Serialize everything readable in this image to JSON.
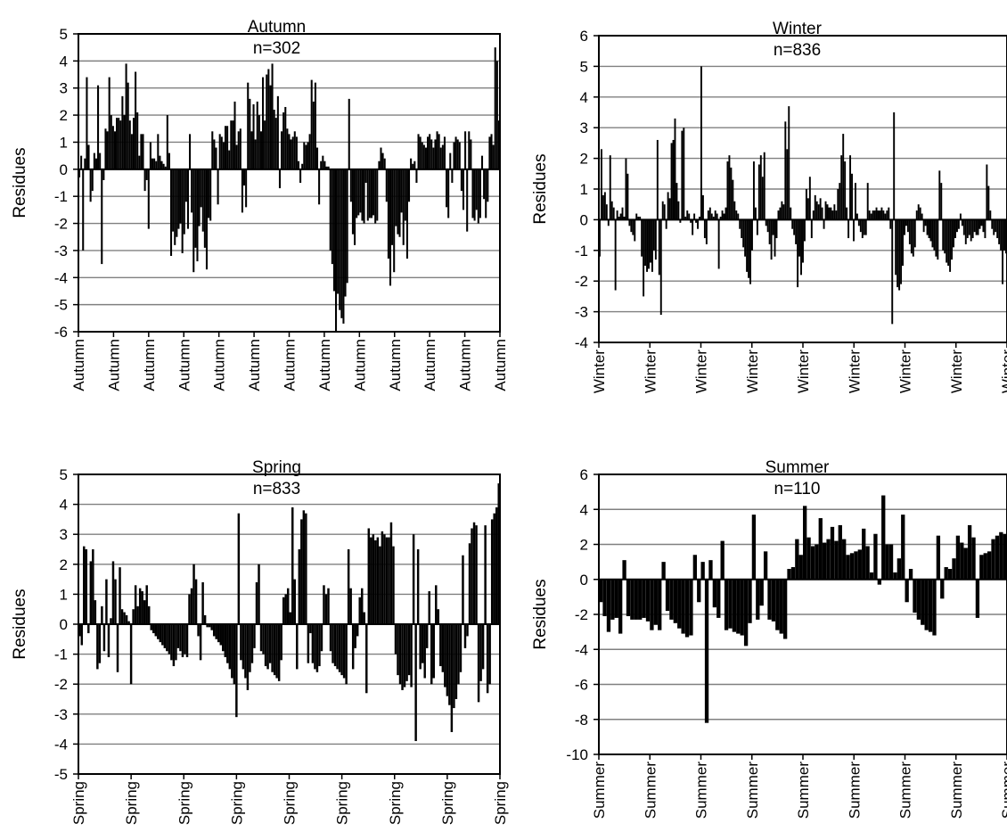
{
  "figure": {
    "panels": [
      {
        "title": "Autumn",
        "n_label": "n=302"
      },
      {
        "title": "Winter",
        "n_label": "n=836"
      },
      {
        "title": "Spring",
        "n_label": "n=833"
      },
      {
        "title": "Summer",
        "n_label": "n=110"
      }
    ]
  },
  "chart_data": [
    {
      "type": "bar",
      "title": "Autumn",
      "annotation": "n=302",
      "ylabel": "Residues",
      "xlabel": "",
      "ylim": [
        -6,
        5
      ],
      "yticks": [
        -6,
        -5,
        -4,
        -3,
        -2,
        -1,
        0,
        1,
        2,
        3,
        4,
        5
      ],
      "xtick_labels": [
        "Autumn",
        "Autumn",
        "Autumn",
        "Autumn",
        "Autumn",
        "Autumn",
        "Autumn",
        "Autumn",
        "Autumn",
        "Autumn",
        "Autumn",
        "Autumn",
        "Autumn"
      ],
      "grid": true,
      "n": 302,
      "values": [
        -0.3,
        0.5,
        -3.0,
        0.4,
        3.4,
        0.9,
        -1.2,
        -0.8,
        0.6,
        0.4,
        3.1,
        0.6,
        -3.5,
        -0.4,
        1.5,
        1.4,
        3.4,
        2.0,
        1.6,
        1.4,
        1.9,
        1.9,
        1.8,
        2.7,
        2.0,
        3.9,
        3.2,
        1.8,
        1.3,
        1.9,
        3.6,
        2.1,
        0.5,
        1.3,
        1.3,
        -0.8,
        -0.4,
        -2.2,
        1.0,
        0.4,
        0.4,
        0.3,
        1.3,
        0.5,
        0.3,
        0.2,
        0.1,
        2.0,
        0.6,
        -3.2,
        -2.3,
        -2.8,
        -2.5,
        -2.2,
        -2.0,
        -3.1,
        -2.4,
        -1.2,
        -2.2,
        1.3,
        -1.6,
        -3.8,
        -2.9,
        -3.4,
        -2.1,
        -1.4,
        -2.3,
        -2.9,
        -3.7,
        -1.8,
        -1.9,
        1.4,
        1.1,
        0.8,
        -1.3,
        1.3,
        1.2,
        1.0,
        1.6,
        1.6,
        0.7,
        1.8,
        1.8,
        2.5,
        0.9,
        1.4,
        1.5,
        -1.6,
        -0.6,
        -1.4,
        3.2,
        2.6,
        1.4,
        2.4,
        1.1,
        2.5,
        2.0,
        1.4,
        3.4,
        1.8,
        3.5,
        3.7,
        3.1,
        3.9,
        2.2,
        1.9,
        2.7,
        -0.7,
        1.4,
        2.1,
        2.3,
        1.5,
        1.3,
        1.1,
        1.2,
        1.4,
        1.2,
        0.3,
        -0.5,
        0.2,
        1.0,
        0.9,
        1.0,
        1.3,
        3.3,
        2.5,
        3.2,
        0.8,
        -1.3,
        0.3,
        0.5,
        0.3,
        0.1,
        0.1,
        -3.0,
        -3.5,
        -4.5,
        -6.0,
        -4.6,
        -5.2,
        -5.5,
        -5.7,
        -4.7,
        -4.2,
        2.6,
        -1.2,
        -2.4,
        -2.8,
        -1.8,
        -1.7,
        -1.6,
        -1.9,
        -2.0,
        -0.5,
        -1.9,
        -1.8,
        -1.8,
        -1.7,
        -2.0,
        -1.9,
        0.3,
        0.8,
        0.6,
        0.4,
        -1.2,
        -3.3,
        -4.3,
        -2.8,
        -3.8,
        -2.1,
        -2.4,
        -2.5,
        -1.6,
        -2.8,
        -1.9,
        -3.3,
        -1.2,
        0.4,
        0.2,
        0.3,
        -0.5,
        1.3,
        1.2,
        1.0,
        0.9,
        0.8,
        1.2,
        1.3,
        1.1,
        0.8,
        1.1,
        1.4,
        1.3,
        0.8,
        0.9,
        1.2,
        -1.4,
        -1.8,
        0.6,
        -0.5,
        1.0,
        1.2,
        1.1,
        1.0,
        -0.8,
        -1.5,
        1.4,
        -2.3,
        1.4,
        1.1,
        -1.8,
        -1.9,
        -1.5,
        -2.0,
        -1.8,
        0.5,
        -1.1,
        -1.8,
        -1.2,
        1.2,
        1.3,
        0.9,
        4.5,
        4.0,
        1.8
      ]
    },
    {
      "type": "bar",
      "title": "Winter",
      "annotation": "n=836",
      "ylabel": "Residues",
      "xlabel": "",
      "ylim": [
        -4,
        6
      ],
      "yticks": [
        -4,
        -3,
        -2,
        -1,
        0,
        1,
        2,
        3,
        4,
        5,
        6
      ],
      "xtick_labels": [
        "Winter",
        "Winter",
        "Winter",
        "Winter",
        "Winter",
        "Winter",
        "Winter",
        "Winter",
        "Winter"
      ],
      "grid": true,
      "n": 836,
      "values": [
        -1.2,
        2.3,
        0.8,
        0.9,
        0.5,
        -0.2,
        2.1,
        0.6,
        0.4,
        -2.3,
        0.3,
        0.1,
        0.2,
        0.4,
        0.1,
        2.0,
        1.5,
        -0.2,
        -0.4,
        -0.5,
        -0.7,
        0.2,
        0.1,
        0.1,
        -1.2,
        -2.5,
        -1.5,
        -1.7,
        -1.6,
        -1.4,
        -1.7,
        -1.0,
        -1.3,
        2.6,
        -1.8,
        -3.1,
        0.6,
        0.5,
        -0.3,
        0.9,
        0.7,
        2.5,
        2.6,
        3.3,
        1.2,
        0.6,
        -0.1,
        2.9,
        3.0,
        0.1,
        0.3,
        0.2,
        -0.1,
        -0.5,
        0.2,
        -0.1,
        -0.3,
        0.1,
        5.0,
        0.8,
        -0.6,
        -0.8,
        0.3,
        0.4,
        0.2,
        0.1,
        0.3,
        0.2,
        -1.6,
        0.1,
        0.3,
        0.2,
        0.4,
        1.9,
        2.1,
        1.7,
        1.3,
        0.6,
        0.3,
        0.2,
        -0.3,
        -0.6,
        -0.9,
        -1.2,
        -1.7,
        -1.9,
        -2.1,
        -1.0,
        1.9,
        0.4,
        -0.5,
        1.8,
        2.1,
        1.4,
        2.2,
        -0.2,
        -0.4,
        -0.8,
        -1.3,
        -0.5,
        -1.2,
        -0.6,
        0.3,
        0.4,
        0.6,
        0.5,
        3.2,
        2.3,
        3.7,
        0.4,
        -0.3,
        -0.5,
        -0.8,
        -2.2,
        -1.2,
        -1.8,
        -1.4,
        -0.7,
        1.0,
        0.7,
        1.4,
        -0.6,
        0.3,
        0.8,
        0.6,
        0.5,
        0.7,
        0.4,
        -0.3,
        0.6,
        0.5,
        0.4,
        0.4,
        0.3,
        0.5,
        0.3,
        1.0,
        1.2,
        2.1,
        2.8,
        1.9,
        0.4,
        -0.6,
        2.1,
        1.5,
        -0.7,
        1.2,
        0.2,
        -0.2,
        -0.4,
        -0.6,
        -0.5,
        -0.5,
        1.2,
        0.3,
        0.2,
        0.3,
        0.3,
        0.4,
        0.3,
        0.3,
        0.4,
        0.3,
        0.2,
        0.3,
        0.4,
        -0.3,
        -3.4,
        3.5,
        -1.8,
        -2.2,
        -2.3,
        -2.1,
        -1.5,
        -0.5,
        -0.2,
        -0.4,
        -0.8,
        -1.1,
        -1.2,
        -0.9,
        0.3,
        0.5,
        0.4,
        0.2,
        -0.4,
        -0.2,
        -0.5,
        -0.6,
        -0.7,
        -0.9,
        -1.0,
        -1.2,
        -1.3,
        1.6,
        1.2,
        -1.0,
        -1.1,
        -1.4,
        -1.5,
        -1.7,
        -1.3,
        -0.9,
        -0.6,
        -0.4,
        -0.3,
        0.2,
        -0.2,
        -0.5,
        -0.8,
        -0.6,
        -0.5,
        -0.7,
        -0.6,
        -0.4,
        -0.5,
        -0.5,
        -0.3,
        -0.2,
        -0.4,
        -0.6,
        1.8,
        1.1,
        0.3,
        -0.3,
        -0.5,
        -0.4,
        -0.6,
        -0.8,
        -1.0,
        -2.1,
        -1.0,
        -1.1
      ]
    },
    {
      "type": "bar",
      "title": "Spring",
      "annotation": "n=833",
      "ylabel": "Residues",
      "xlabel": "",
      "ylim": [
        -5,
        5
      ],
      "yticks": [
        -5,
        -4,
        -3,
        -2,
        -1,
        0,
        1,
        2,
        3,
        4,
        5
      ],
      "xtick_labels": [
        "Spring",
        "Spring",
        "Spring",
        "Spring",
        "Spring",
        "Spring",
        "Spring",
        "Spring",
        "Spring"
      ],
      "grid": true,
      "n": 833,
      "values": [
        -0.4,
        -0.7,
        2.6,
        2.5,
        -0.3,
        2.1,
        2.5,
        0.8,
        -1.5,
        -1.3,
        0.6,
        -0.9,
        1.5,
        -1.1,
        0.2,
        2.1,
        1.5,
        -1.6,
        1.9,
        0.5,
        0.4,
        0.3,
        0.1,
        -2.0,
        0.5,
        1.3,
        0.6,
        1.2,
        1.1,
        0.8,
        1.3,
        0.6,
        -0.2,
        -0.3,
        -0.4,
        -0.5,
        -0.6,
        -0.7,
        -0.8,
        -0.9,
        -1.0,
        -1.2,
        -1.4,
        -1.2,
        -0.8,
        -0.9,
        -1.1,
        -1.0,
        -1.1,
        1.0,
        1.2,
        2.0,
        1.5,
        -0.4,
        -1.2,
        1.4,
        0.3,
        -0.1,
        -0.1,
        -0.2,
        -0.4,
        -0.5,
        -0.6,
        -0.7,
        -0.9,
        -1.1,
        -1.3,
        -1.5,
        -1.8,
        -2.0,
        -3.1,
        3.7,
        -1.2,
        -1.5,
        -1.8,
        -2.2,
        -1.6,
        -1.3,
        -0.8,
        1.4,
        2.0,
        -0.9,
        -1.0,
        -1.4,
        -1.5,
        -1.3,
        -1.6,
        -1.7,
        -1.8,
        -1.9,
        -1.2,
        0.9,
        1.0,
        1.2,
        0.4,
        3.9,
        1.5,
        -1.5,
        2.5,
        3.5,
        3.8,
        3.7,
        -1.3,
        -0.3,
        -1.3,
        -1.5,
        -1.6,
        -1.4,
        -0.9,
        1.3,
        1.0,
        1.2,
        -0.9,
        -1.3,
        -1.4,
        -1.5,
        -1.6,
        -1.7,
        -1.8,
        -2.0,
        2.5,
        1.2,
        -1.5,
        -0.8,
        -0.4,
        0.9,
        1.2,
        0.4,
        -2.3,
        3.2,
        2.9,
        3.0,
        2.8,
        2.9,
        2.6,
        3.1,
        3.0,
        2.9,
        2.9,
        3.4,
        2.6,
        -1.0,
        -1.7,
        -2.0,
        -2.2,
        -2.1,
        -1.9,
        -1.7,
        -2.1,
        3.0,
        -3.9,
        2.5,
        -1.5,
        -1.3,
        -1.8,
        -0.8,
        1.1,
        -2.0,
        -1.8,
        1.3,
        0.5,
        -1.4,
        -1.6,
        -2.1,
        -2.4,
        -2.7,
        -3.6,
        -2.8,
        -2.5,
        -2.0,
        -1.6,
        2.3,
        -0.8,
        -0.4,
        2.7,
        3.2,
        3.4,
        3.3,
        -2.6,
        -1.9,
        -1.5,
        3.3,
        -2.3,
        -2.0,
        3.5,
        3.7,
        3.9,
        4.7
      ]
    },
    {
      "type": "bar",
      "title": "Summer",
      "annotation": "n=110",
      "ylabel": "Residues",
      "xlabel": "",
      "ylim": [
        -10,
        6
      ],
      "yticks": [
        -10,
        -8,
        -6,
        -4,
        -2,
        0,
        2,
        4,
        6
      ],
      "xtick_labels": [
        "Summer",
        "Summer",
        "Summer",
        "Summer",
        "Summer",
        "Summer",
        "Summer",
        "Summer",
        "Summer"
      ],
      "grid": true,
      "n": 110,
      "values": [
        -1.3,
        -2.1,
        -3.0,
        -2.3,
        -2.2,
        -3.1,
        1.1,
        -2.1,
        -2.3,
        -2.3,
        -2.3,
        -2.2,
        -2.4,
        -2.9,
        -2.6,
        -2.9,
        1.0,
        -1.8,
        -2.3,
        -2.5,
        -2.8,
        -3.1,
        -3.3,
        -3.2,
        1.4,
        -1.3,
        1.0,
        -8.2,
        1.1,
        -1.6,
        -2.2,
        2.2,
        -2.9,
        -2.8,
        -3.0,
        -3.1,
        -3.2,
        -3.8,
        -2.5,
        3.7,
        -2.3,
        -1.5,
        1.6,
        -2.3,
        -2.4,
        -2.9,
        -3.1,
        -3.4,
        0.6,
        0.7,
        2.3,
        1.4,
        4.2,
        2.4,
        1.9,
        2.0,
        3.5,
        2.1,
        2.3,
        3.0,
        2.2,
        3.1,
        2.3,
        1.4,
        1.5,
        1.6,
        1.7,
        2.9,
        1.9,
        0.4,
        2.6,
        -0.3,
        4.8,
        2.0,
        2.0,
        0.4,
        1.2,
        3.7,
        -1.3,
        0.6,
        -1.9,
        -2.3,
        -2.6,
        -2.9,
        -3.0,
        -3.2,
        2.5,
        -1.1,
        0.7,
        0.6,
        1.2,
        2.5,
        2.1,
        1.8,
        3.1,
        2.4,
        -2.2,
        1.4,
        1.5,
        1.6,
        2.3,
        2.5,
        2.7,
        2.6
      ]
    }
  ]
}
